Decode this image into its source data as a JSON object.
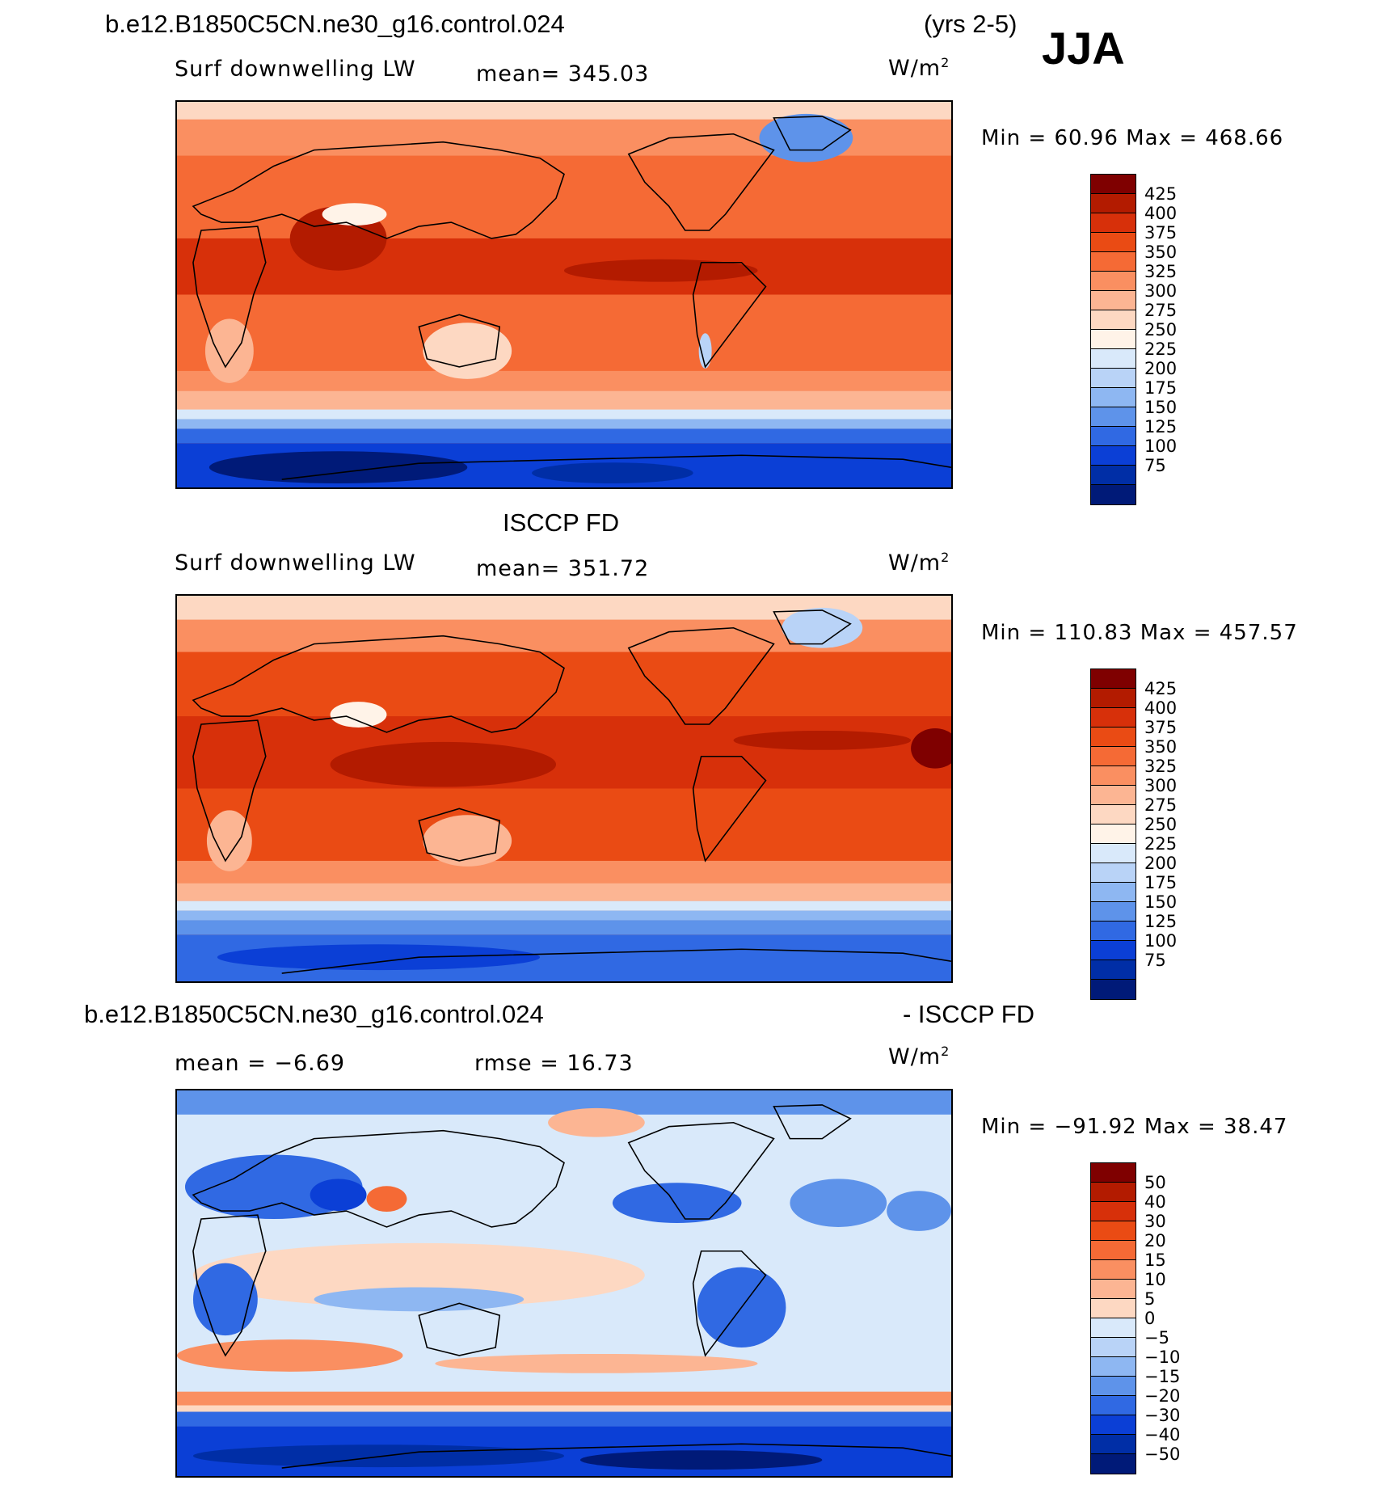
{
  "figure": {
    "case_name": "b.e12.B1850C5CN.ne30_g16.control.024",
    "years": "(yrs 2-5)",
    "season": "JJA"
  },
  "panels": [
    {
      "id": "model",
      "title": "b.e12.B1850C5CN.ne30_g16.control.024",
      "variable": "Surf downwelling LW",
      "stat": "mean= 345.03",
      "units": "W/m",
      "units_exp": "2",
      "minmax": "Min =  60.96 Max = 468.66",
      "colorbar": {
        "levels": [
          "425",
          "400",
          "375",
          "350",
          "325",
          "300",
          "275",
          "250",
          "225",
          "200",
          "175",
          "150",
          "125",
          "100",
          "75"
        ],
        "colors": [
          "#7f0000",
          "#b31b00",
          "#d7300a",
          "#ea4b14",
          "#f56a35",
          "#fa8f61",
          "#fcb593",
          "#fdd8c2",
          "#fff3e8",
          "#d9e9fa",
          "#b9d3f7",
          "#8eb7f2",
          "#5e93ea",
          "#3069e3",
          "#0b3fd6",
          "#002ea6",
          "#001a78"
        ]
      }
    },
    {
      "id": "obs",
      "title": "ISCCP FD",
      "variable": "Surf downwelling LW",
      "stat": "mean= 351.72",
      "units": "W/m",
      "units_exp": "2",
      "minmax": "Min = 110.83 Max = 457.57",
      "colorbar": {
        "levels": [
          "425",
          "400",
          "375",
          "350",
          "325",
          "300",
          "275",
          "250",
          "225",
          "200",
          "175",
          "150",
          "125",
          "100",
          "75"
        ],
        "colors": [
          "#7f0000",
          "#b31b00",
          "#d7300a",
          "#ea4b14",
          "#f56a35",
          "#fa8f61",
          "#fcb593",
          "#fdd8c2",
          "#fff3e8",
          "#d9e9fa",
          "#b9d3f7",
          "#8eb7f2",
          "#5e93ea",
          "#3069e3",
          "#0b3fd6",
          "#002ea6",
          "#001a78"
        ]
      }
    },
    {
      "id": "diff",
      "title_left": "b.e12.B1850C5CN.ne30_g16.control.024",
      "title_right": "- ISCCP FD",
      "stat_mean": "mean =  −6.69",
      "stat_rmse": "rmse =  16.73",
      "units": "W/m",
      "units_exp": "2",
      "minmax": "Min = −91.92 Max =  38.47",
      "colorbar": {
        "levels": [
          "50",
          "40",
          "30",
          "20",
          "15",
          "10",
          "5",
          "0",
          "−5",
          "−10",
          "−15",
          "−20",
          "−30",
          "−40",
          "−50"
        ],
        "colors": [
          "#7f0000",
          "#b31b00",
          "#d7300a",
          "#ea4b14",
          "#f56a35",
          "#fa8f61",
          "#fcb593",
          "#fdd8c2",
          "#d9e9fa",
          "#b9d3f7",
          "#8eb7f2",
          "#5e93ea",
          "#3069e3",
          "#0b3fd6",
          "#002ea6",
          "#001a78"
        ]
      }
    }
  ]
}
